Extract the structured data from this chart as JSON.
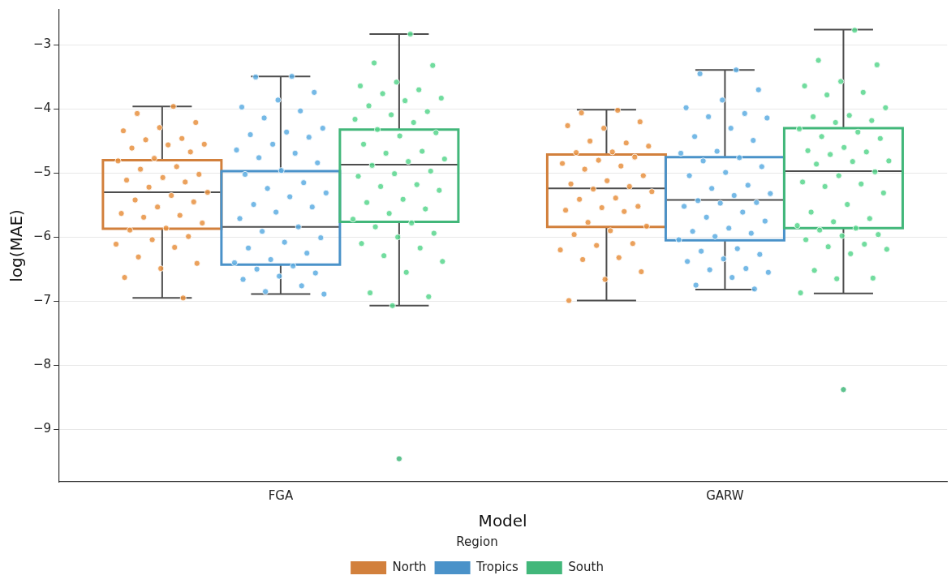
{
  "chart_data": {
    "type": "box",
    "categories": [
      "FGA",
      "GARW"
    ],
    "xlabel": "Model",
    "ylabel": "log(MAE)",
    "legend_title": "Region",
    "legend": "bottom",
    "grid": "y",
    "marker": "circle",
    "ylim": [
      -9.82,
      -2.45
    ],
    "yticks": [
      {
        "value": -9,
        "label": "−9"
      },
      {
        "value": -8,
        "label": "−8"
      },
      {
        "value": -7,
        "label": "−7"
      },
      {
        "value": -6,
        "label": "−6"
      },
      {
        "value": -5,
        "label": "−5"
      },
      {
        "value": -4,
        "label": "−4"
      },
      {
        "value": -3,
        "label": "−3"
      }
    ],
    "series": [
      {
        "name": "North",
        "color": "#d2803c",
        "boxes": [
          {
            "low": -6.95,
            "q1": -5.87,
            "median": -5.3,
            "q3": -4.8,
            "high": -3.96
          },
          {
            "low": -6.99,
            "q1": -5.84,
            "median": -5.24,
            "q3": -4.71,
            "high": -4.01
          }
        ]
      },
      {
        "name": "Tropics",
        "color": "#4a92c9",
        "boxes": [
          {
            "low": -6.89,
            "q1": -6.43,
            "median": -5.84,
            "q3": -4.97,
            "high": -3.49
          },
          {
            "low": -6.82,
            "q1": -6.05,
            "median": -5.42,
            "q3": -4.75,
            "high": -3.39
          }
        ]
      },
      {
        "name": "South",
        "color": "#42b77a",
        "boxes": [
          {
            "low": -7.07,
            "q1": -5.76,
            "median": -4.87,
            "q3": -4.32,
            "high": -2.83,
            "outliers": [
              -9.46
            ]
          },
          {
            "low": -6.88,
            "q1": -5.86,
            "median": -4.97,
            "q3": -4.3,
            "high": -2.76,
            "outliers": [
              -8.38
            ]
          }
        ]
      },
      {
        "type": "scatter",
        "color": "#e8913f",
        "x": [
          "FGA",
          "FGA",
          "FGA",
          "FGA",
          "FGA",
          "FGA",
          "FGA",
          "FGA",
          "FGA",
          "FGA",
          "FGA",
          "FGA",
          "FGA",
          "FGA",
          "FGA",
          "FGA",
          "FGA",
          "FGA",
          "FGA",
          "FGA",
          "FGA",
          "FGA",
          "FGA",
          "FGA",
          "FGA",
          "FGA",
          "FGA",
          "FGA",
          "FGA",
          "FGA",
          "FGA",
          "FGA",
          "FGA",
          "FGA",
          "FGA",
          "FGA",
          "FGA",
          "FGA",
          "FGA",
          "FGA",
          "GARW",
          "GARW",
          "GARW",
          "GARW",
          "GARW",
          "GARW",
          "GARW",
          "GARW",
          "GARW",
          "GARW",
          "GARW",
          "GARW",
          "GARW",
          "GARW",
          "GARW",
          "GARW",
          "GARW",
          "GARW",
          "GARW",
          "GARW",
          "GARW",
          "GARW",
          "GARW",
          "GARW",
          "GARW",
          "GARW",
          "GARW",
          "GARW",
          "GARW",
          "GARW",
          "GARW",
          "GARW",
          "GARW",
          "GARW",
          "GARW",
          "GARW",
          "GARW",
          "GARW",
          "GARW"
        ],
        "values": [
          -3.96,
          -4.07,
          -4.21,
          -4.29,
          -4.34,
          -4.46,
          -4.48,
          -4.55,
          -4.56,
          -4.61,
          -4.67,
          -4.77,
          -4.81,
          -4.9,
          -4.94,
          -5.02,
          -5.07,
          -5.11,
          -5.14,
          -5.22,
          -5.3,
          -5.35,
          -5.42,
          -5.45,
          -5.53,
          -5.63,
          -5.66,
          -5.69,
          -5.78,
          -5.86,
          -5.89,
          -5.99,
          -6.04,
          -6.11,
          -6.16,
          -6.31,
          -6.41,
          -6.49,
          -6.63,
          -6.95,
          -4.02,
          -4.06,
          -4.2,
          -4.3,
          -4.26,
          -4.53,
          -4.5,
          -4.58,
          -4.67,
          -4.68,
          -4.75,
          -4.8,
          -4.85,
          -4.89,
          -4.94,
          -5.04,
          -5.12,
          -5.17,
          -5.21,
          -5.25,
          -5.29,
          -5.39,
          -5.41,
          -5.52,
          -5.54,
          -5.58,
          -5.6,
          -5.77,
          -5.83,
          -5.9,
          -5.96,
          -6.1,
          -6.13,
          -6.2,
          -6.32,
          -6.35,
          -6.54,
          -6.66,
          -6.99
        ]
      },
      {
        "type": "scatter",
        "color": "#5dade2",
        "x": [
          "FGA",
          "FGA",
          "FGA",
          "FGA",
          "FGA",
          "FGA",
          "FGA",
          "FGA",
          "FGA",
          "FGA",
          "FGA",
          "FGA",
          "FGA",
          "FGA",
          "FGA",
          "FGA",
          "FGA",
          "FGA",
          "FGA",
          "FGA",
          "FGA",
          "FGA",
          "FGA",
          "FGA",
          "FGA",
          "FGA",
          "FGA",
          "FGA",
          "FGA",
          "FGA",
          "FGA",
          "FGA",
          "FGA",
          "FGA",
          "FGA",
          "FGA",
          "FGA",
          "FGA",
          "FGA",
          "FGA",
          "FGA",
          "FGA",
          "GARW",
          "GARW",
          "GARW",
          "GARW",
          "GARW",
          "GARW",
          "GARW",
          "GARW",
          "GARW",
          "GARW",
          "GARW",
          "GARW",
          "GARW",
          "GARW",
          "GARW",
          "GARW",
          "GARW",
          "GARW",
          "GARW",
          "GARW",
          "GARW",
          "GARW",
          "GARW",
          "GARW",
          "GARW",
          "GARW",
          "GARW",
          "GARW",
          "GARW",
          "GARW",
          "GARW",
          "GARW",
          "GARW",
          "GARW",
          "GARW",
          "GARW",
          "GARW",
          "GARW",
          "GARW",
          "GARW",
          "GARW",
          "GARW",
          "GARW",
          "GARW",
          "GARW"
        ],
        "values": [
          -3.49,
          -3.5,
          -3.74,
          -3.86,
          -3.97,
          -4.03,
          -4.14,
          -4.3,
          -4.36,
          -4.4,
          -4.44,
          -4.55,
          -4.64,
          -4.69,
          -4.76,
          -4.84,
          -4.96,
          -5.02,
          -5.15,
          -5.24,
          -5.31,
          -5.37,
          -5.49,
          -5.53,
          -5.61,
          -5.71,
          -5.84,
          -5.91,
          -6.01,
          -6.08,
          -6.17,
          -6.25,
          -6.35,
          -6.4,
          -6.45,
          -6.5,
          -6.56,
          -6.61,
          -6.66,
          -6.76,
          -6.85,
          -6.89,
          -3.39,
          -3.45,
          -3.7,
          -3.86,
          -3.98,
          -4.07,
          -4.12,
          -4.14,
          -4.3,
          -4.43,
          -4.49,
          -4.66,
          -4.69,
          -4.76,
          -4.81,
          -4.9,
          -4.99,
          -5.04,
          -5.19,
          -5.24,
          -5.32,
          -5.35,
          -5.43,
          -5.46,
          -5.47,
          -5.52,
          -5.61,
          -5.69,
          -5.75,
          -5.86,
          -5.91,
          -5.94,
          -5.99,
          -6.04,
          -6.18,
          -6.22,
          -6.27,
          -6.34,
          -6.38,
          -6.49,
          -6.51,
          -6.55,
          -6.63,
          -6.75,
          -6.81
        ]
      },
      {
        "type": "scatter",
        "color": "#58d68d",
        "x": [
          "FGA",
          "FGA",
          "FGA",
          "FGA",
          "FGA",
          "FGA",
          "FGA",
          "FGA",
          "FGA",
          "FGA",
          "FGA",
          "FGA",
          "FGA",
          "FGA",
          "FGA",
          "FGA",
          "FGA",
          "FGA",
          "FGA",
          "FGA",
          "FGA",
          "FGA",
          "FGA",
          "FGA",
          "FGA",
          "FGA",
          "FGA",
          "FGA",
          "FGA",
          "FGA",
          "FGA",
          "FGA",
          "FGA",
          "FGA",
          "FGA",
          "FGA",
          "FGA",
          "FGA",
          "FGA",
          "FGA",
          "FGA",
          "FGA",
          "FGA",
          "FGA",
          "FGA",
          "FGA",
          "GARW",
          "GARW",
          "GARW",
          "GARW",
          "GARW",
          "GARW",
          "GARW",
          "GARW",
          "GARW",
          "GARW",
          "GARW",
          "GARW",
          "GARW",
          "GARW",
          "GARW",
          "GARW",
          "GARW",
          "GARW",
          "GARW",
          "GARW",
          "GARW",
          "GARW",
          "GARW",
          "GARW",
          "GARW",
          "GARW",
          "GARW",
          "GARW",
          "GARW",
          "GARW",
          "GARW",
          "GARW",
          "GARW",
          "GARW",
          "GARW",
          "GARW",
          "GARW",
          "GARW",
          "GARW",
          "GARW",
          "GARW",
          "GARW",
          "GARW",
          "GARW",
          "GARW",
          "GARW",
          "GARW"
        ],
        "values": [
          -2.83,
          -3.28,
          -3.32,
          -3.58,
          -3.64,
          -3.7,
          -3.76,
          -3.83,
          -3.87,
          -3.95,
          -4.04,
          -4.09,
          -4.16,
          -4.21,
          -4.32,
          -4.37,
          -4.42,
          -4.55,
          -4.66,
          -4.69,
          -4.78,
          -4.82,
          -4.88,
          -4.97,
          -5.01,
          -5.05,
          -5.18,
          -5.21,
          -5.27,
          -5.41,
          -5.46,
          -5.56,
          -5.63,
          -5.72,
          -5.78,
          -5.84,
          -5.94,
          -6.0,
          -6.1,
          -6.17,
          -6.29,
          -6.38,
          -6.55,
          -6.87,
          -6.93,
          -7.07,
          -2.77,
          -3.24,
          -3.31,
          -3.57,
          -3.64,
          -3.74,
          -3.78,
          -3.98,
          -4.1,
          -4.12,
          -4.18,
          -4.21,
          -4.31,
          -4.36,
          -4.43,
          -4.46,
          -4.6,
          -4.65,
          -4.67,
          -4.71,
          -4.81,
          -4.82,
          -4.86,
          -4.98,
          -5.04,
          -5.14,
          -5.17,
          -5.21,
          -5.31,
          -5.49,
          -5.61,
          -5.71,
          -5.76,
          -5.82,
          -5.86,
          -5.89,
          -5.96,
          -5.98,
          -6.04,
          -6.11,
          -6.15,
          -6.19,
          -6.26,
          -6.52,
          -6.64,
          -6.65,
          -6.87
        ]
      }
    ]
  }
}
